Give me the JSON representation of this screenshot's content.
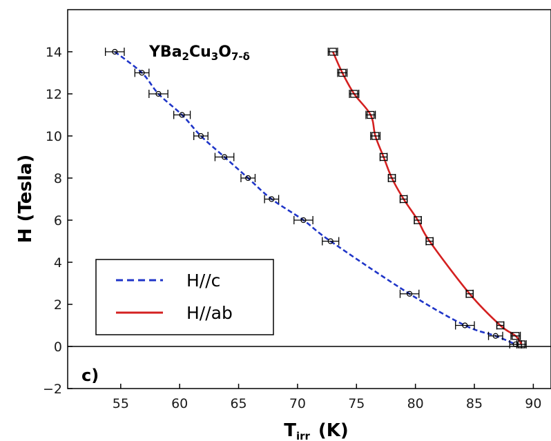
{
  "chart_data": {
    "type": "scatter",
    "title": "YBa2Cu3O7-δ",
    "title_parts": {
      "base1": "YBa",
      "sub1": "2",
      "base2": "Cu",
      "sub2": "3",
      "base3": "O",
      "sub3": "7-δ"
    },
    "panel_label": "c)",
    "xlabel": "Tirr (K)",
    "xlabel_parts": {
      "base": "T",
      "sub": "irr",
      "unit": "(K)"
    },
    "ylabel": "H (Tesla)",
    "xlim": [
      50.5,
      91.5
    ],
    "ylim": [
      -2,
      16
    ],
    "x_ticks": [
      "55",
      "60",
      "65",
      "70",
      "75",
      "80",
      "85",
      "90"
    ],
    "y_ticks": [
      "−2",
      "0",
      "2",
      "4",
      "6",
      "8",
      "10",
      "12",
      "14"
    ],
    "x_tick_values": [
      55,
      60,
      65,
      70,
      75,
      80,
      85,
      90
    ],
    "y_tick_values": [
      -2,
      0,
      2,
      4,
      6,
      8,
      10,
      12,
      14
    ],
    "grid": false,
    "zero_line": true,
    "legend_position": "bottom-left",
    "series": [
      {
        "name": "H//c",
        "color": "#1f35c8",
        "line_style": "dashed",
        "marker": "circle",
        "points": [
          {
            "x": 54.5,
            "y": 14,
            "xerr": 0.8
          },
          {
            "x": 56.8,
            "y": 13,
            "xerr": 0.6
          },
          {
            "x": 58.2,
            "y": 12,
            "xerr": 0.8
          },
          {
            "x": 60.2,
            "y": 11,
            "xerr": 0.7
          },
          {
            "x": 61.8,
            "y": 10,
            "xerr": 0.6
          },
          {
            "x": 63.8,
            "y": 9,
            "xerr": 0.8
          },
          {
            "x": 65.8,
            "y": 8,
            "xerr": 0.6
          },
          {
            "x": 67.8,
            "y": 7,
            "xerr": 0.6
          },
          {
            "x": 70.5,
            "y": 6,
            "xerr": 0.8
          },
          {
            "x": 72.8,
            "y": 5,
            "xerr": 0.7
          },
          {
            "x": 79.5,
            "y": 2.5,
            "xerr": 0.8
          },
          {
            "x": 84.2,
            "y": 1,
            "xerr": 0.8
          },
          {
            "x": 86.8,
            "y": 0.5,
            "xerr": 0.6
          },
          {
            "x": 88.5,
            "y": 0.1,
            "xerr": 0.5
          }
        ]
      },
      {
        "name": "H//ab",
        "color": "#d42020",
        "line_style": "solid",
        "marker": "square",
        "points": [
          {
            "x": 73.0,
            "y": 14,
            "xerr": 0.4
          },
          {
            "x": 73.8,
            "y": 13,
            "xerr": 0.4
          },
          {
            "x": 74.8,
            "y": 12,
            "xerr": 0.4
          },
          {
            "x": 76.2,
            "y": 11,
            "xerr": 0.4
          },
          {
            "x": 76.6,
            "y": 10,
            "xerr": 0.4
          },
          {
            "x": 77.3,
            "y": 9,
            "xerr": 0.3
          },
          {
            "x": 78.0,
            "y": 8,
            "xerr": 0.3
          },
          {
            "x": 79.0,
            "y": 7,
            "xerr": 0.3
          },
          {
            "x": 80.2,
            "y": 6,
            "xerr": 0.3
          },
          {
            "x": 81.2,
            "y": 5,
            "xerr": 0.3
          },
          {
            "x": 84.6,
            "y": 2.5,
            "xerr": 0.3
          },
          {
            "x": 87.2,
            "y": 1,
            "xerr": 0.3
          },
          {
            "x": 88.5,
            "y": 0.5,
            "xerr": 0.4
          },
          {
            "x": 89.0,
            "y": 0.1,
            "xerr": 0.4
          }
        ]
      }
    ]
  }
}
